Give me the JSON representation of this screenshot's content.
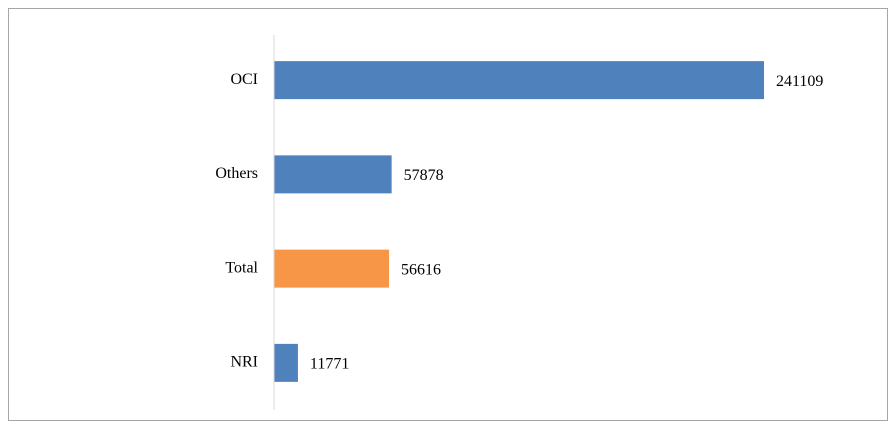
{
  "chart_data": {
    "type": "hbar",
    "categories": [
      "OCI",
      "Others",
      "Total",
      "NRI"
    ],
    "values": [
      241109,
      57878,
      56616,
      11771
    ],
    "colors": [
      "#4f81bd",
      "#4f81bd",
      "#f79646",
      "#4f81bd"
    ]
  }
}
